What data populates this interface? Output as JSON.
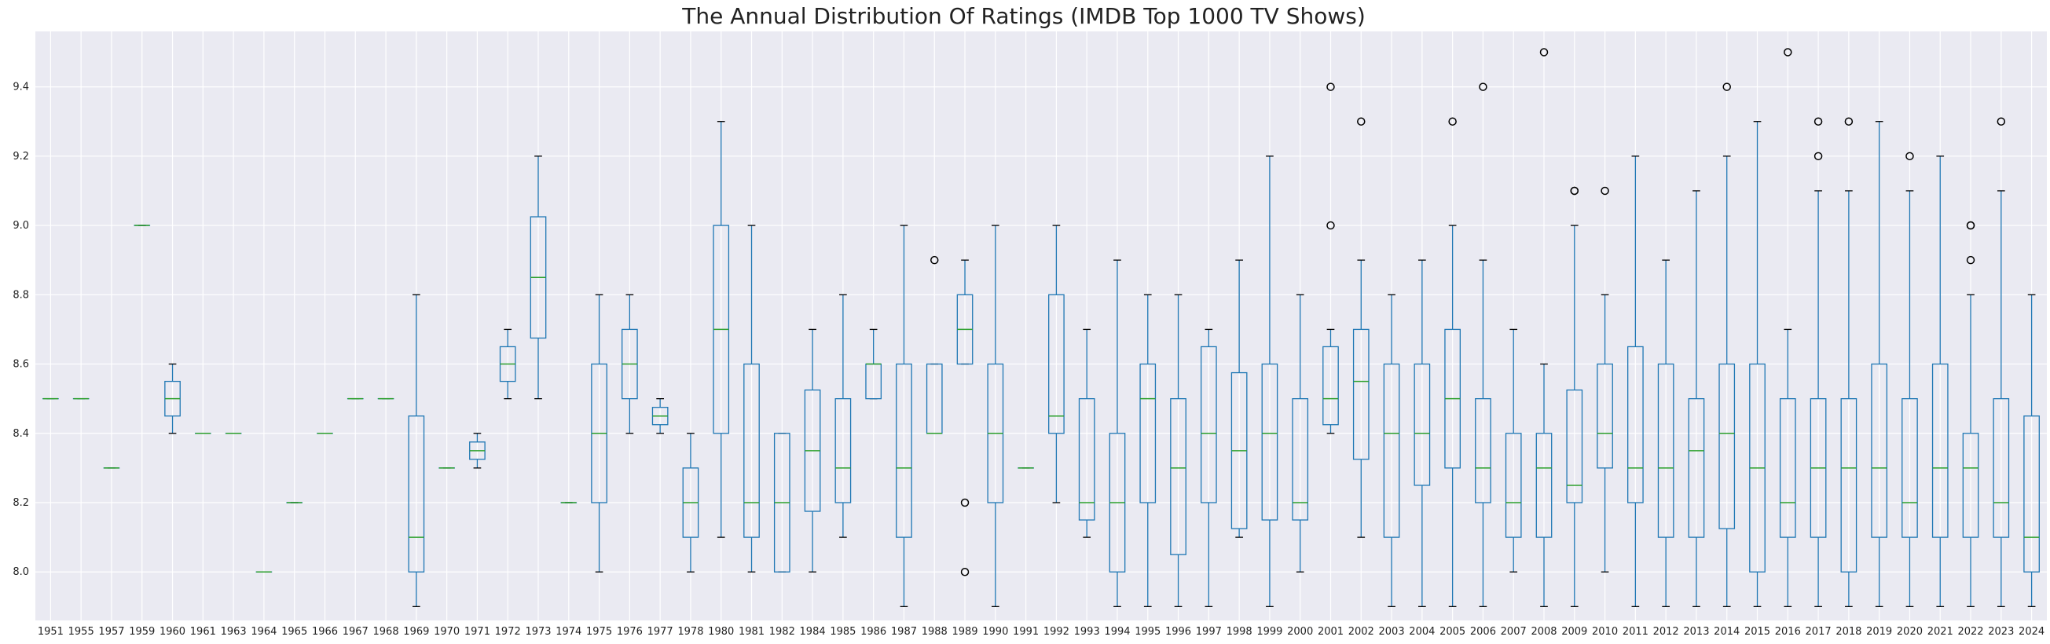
{
  "chart_data": {
    "type": "box",
    "title": "The Annual Distribution Of Ratings (IMDB Top 1000 TV Shows)",
    "xlabel": "",
    "ylabel": "",
    "ylim": [
      7.86,
      9.56
    ],
    "yticks": [
      8.0,
      8.2,
      8.4,
      8.6,
      8.8,
      9.0,
      9.2,
      9.4
    ],
    "ytick_labels": [
      "8.0",
      "8.2",
      "8.4",
      "8.6",
      "8.8",
      "9.0",
      "9.2",
      "9.4"
    ],
    "grid": true,
    "colors": {
      "background": "#eaeaf2",
      "grid": "#ffffff",
      "box": "#1f77b4",
      "median": "#2ca02c",
      "outlier": "#000000"
    },
    "boxes": [
      {
        "category": "1951",
        "whislo": 8.5,
        "q1": 8.5,
        "med": 8.5,
        "q3": 8.5,
        "whishi": 8.5,
        "fliers": []
      },
      {
        "category": "1955",
        "whislo": 8.5,
        "q1": 8.5,
        "med": 8.5,
        "q3": 8.5,
        "whishi": 8.5,
        "fliers": []
      },
      {
        "category": "1957",
        "whislo": 8.3,
        "q1": 8.3,
        "med": 8.3,
        "q3": 8.3,
        "whishi": 8.3,
        "fliers": []
      },
      {
        "category": "1959",
        "whislo": 9.0,
        "q1": 9.0,
        "med": 9.0,
        "q3": 9.0,
        "whishi": 9.0,
        "fliers": []
      },
      {
        "category": "1960",
        "whislo": 8.4,
        "q1": 8.45,
        "med": 8.5,
        "q3": 8.55,
        "whishi": 8.6,
        "fliers": []
      },
      {
        "category": "1961",
        "whislo": 8.4,
        "q1": 8.4,
        "med": 8.4,
        "q3": 8.4,
        "whishi": 8.4,
        "fliers": []
      },
      {
        "category": "1963",
        "whislo": 8.4,
        "q1": 8.4,
        "med": 8.4,
        "q3": 8.4,
        "whishi": 8.4,
        "fliers": []
      },
      {
        "category": "1964",
        "whislo": 8.0,
        "q1": 8.0,
        "med": 8.0,
        "q3": 8.0,
        "whishi": 8.0,
        "fliers": []
      },
      {
        "category": "1965",
        "whislo": 8.2,
        "q1": 8.2,
        "med": 8.2,
        "q3": 8.2,
        "whishi": 8.2,
        "fliers": []
      },
      {
        "category": "1966",
        "whislo": 8.4,
        "q1": 8.4,
        "med": 8.4,
        "q3": 8.4,
        "whishi": 8.4,
        "fliers": []
      },
      {
        "category": "1967",
        "whislo": 8.5,
        "q1": 8.5,
        "med": 8.5,
        "q3": 8.5,
        "whishi": 8.5,
        "fliers": []
      },
      {
        "category": "1968",
        "whislo": 8.5,
        "q1": 8.5,
        "med": 8.5,
        "q3": 8.5,
        "whishi": 8.5,
        "fliers": []
      },
      {
        "category": "1969",
        "whislo": 7.9,
        "q1": 8.0,
        "med": 8.1,
        "q3": 8.45,
        "whishi": 8.8,
        "fliers": []
      },
      {
        "category": "1970",
        "whislo": 8.3,
        "q1": 8.3,
        "med": 8.3,
        "q3": 8.3,
        "whishi": 8.3,
        "fliers": []
      },
      {
        "category": "1971",
        "whislo": 8.3,
        "q1": 8.325,
        "med": 8.35,
        "q3": 8.375,
        "whishi": 8.4,
        "fliers": []
      },
      {
        "category": "1972",
        "whislo": 8.5,
        "q1": 8.55,
        "med": 8.6,
        "q3": 8.65,
        "whishi": 8.7,
        "fliers": []
      },
      {
        "category": "1973",
        "whislo": 8.5,
        "q1": 8.675,
        "med": 8.85,
        "q3": 9.025,
        "whishi": 9.2,
        "fliers": []
      },
      {
        "category": "1974",
        "whislo": 8.2,
        "q1": 8.2,
        "med": 8.2,
        "q3": 8.2,
        "whishi": 8.2,
        "fliers": []
      },
      {
        "category": "1975",
        "whislo": 8.0,
        "q1": 8.2,
        "med": 8.4,
        "q3": 8.6,
        "whishi": 8.8,
        "fliers": []
      },
      {
        "category": "1976",
        "whislo": 8.4,
        "q1": 8.5,
        "med": 8.6,
        "q3": 8.7,
        "whishi": 8.8,
        "fliers": []
      },
      {
        "category": "1977",
        "whislo": 8.4,
        "q1": 8.425,
        "med": 8.45,
        "q3": 8.475,
        "whishi": 8.5,
        "fliers": []
      },
      {
        "category": "1978",
        "whislo": 8.0,
        "q1": 8.1,
        "med": 8.2,
        "q3": 8.3,
        "whishi": 8.4,
        "fliers": []
      },
      {
        "category": "1980",
        "whislo": 8.1,
        "q1": 8.4,
        "med": 8.7,
        "q3": 9.0,
        "whishi": 9.3,
        "fliers": []
      },
      {
        "category": "1981",
        "whislo": 8.0,
        "q1": 8.1,
        "med": 8.2,
        "q3": 8.6,
        "whishi": 9.0,
        "fliers": []
      },
      {
        "category": "1982",
        "whislo": 8.0,
        "q1": 8.0,
        "med": 8.2,
        "q3": 8.4,
        "whishi": 8.4,
        "fliers": []
      },
      {
        "category": "1984",
        "whislo": 8.0,
        "q1": 8.175,
        "med": 8.35,
        "q3": 8.525,
        "whishi": 8.7,
        "fliers": []
      },
      {
        "category": "1985",
        "whislo": 8.1,
        "q1": 8.2,
        "med": 8.3,
        "q3": 8.5,
        "whishi": 8.8,
        "fliers": []
      },
      {
        "category": "1986",
        "whislo": 8.5,
        "q1": 8.5,
        "med": 8.6,
        "q3": 8.6,
        "whishi": 8.7,
        "fliers": []
      },
      {
        "category": "1987",
        "whislo": 7.9,
        "q1": 8.1,
        "med": 8.3,
        "q3": 8.6,
        "whishi": 9.0,
        "fliers": []
      },
      {
        "category": "1988",
        "whislo": 8.4,
        "q1": 8.4,
        "med": 8.4,
        "q3": 8.6,
        "whishi": 8.6,
        "fliers": [
          8.9
        ]
      },
      {
        "category": "1989",
        "whislo": 8.6,
        "q1": 8.6,
        "med": 8.7,
        "q3": 8.8,
        "whishi": 8.9,
        "fliers": [
          8.2,
          8.0
        ]
      },
      {
        "category": "1990",
        "whislo": 7.9,
        "q1": 8.2,
        "med": 8.4,
        "q3": 8.6,
        "whishi": 9.0,
        "fliers": []
      },
      {
        "category": "1991",
        "whislo": 8.3,
        "q1": 8.3,
        "med": 8.3,
        "q3": 8.3,
        "whishi": 8.3,
        "fliers": []
      },
      {
        "category": "1992",
        "whislo": 8.2,
        "q1": 8.4,
        "med": 8.45,
        "q3": 8.8,
        "whishi": 9.0,
        "fliers": []
      },
      {
        "category": "1993",
        "whislo": 8.1,
        "q1": 8.15,
        "med": 8.2,
        "q3": 8.5,
        "whishi": 8.7,
        "fliers": []
      },
      {
        "category": "1994",
        "whislo": 7.9,
        "q1": 8.0,
        "med": 8.2,
        "q3": 8.4,
        "whishi": 8.9,
        "fliers": []
      },
      {
        "category": "1995",
        "whislo": 7.9,
        "q1": 8.2,
        "med": 8.5,
        "q3": 8.6,
        "whishi": 8.8,
        "fliers": []
      },
      {
        "category": "1996",
        "whislo": 7.9,
        "q1": 8.05,
        "med": 8.3,
        "q3": 8.5,
        "whishi": 8.8,
        "fliers": []
      },
      {
        "category": "1997",
        "whislo": 7.9,
        "q1": 8.2,
        "med": 8.4,
        "q3": 8.65,
        "whishi": 8.7,
        "fliers": []
      },
      {
        "category": "1998",
        "whislo": 8.1,
        "q1": 8.125,
        "med": 8.35,
        "q3": 8.575,
        "whishi": 8.9,
        "fliers": []
      },
      {
        "category": "1999",
        "whislo": 7.9,
        "q1": 8.15,
        "med": 8.4,
        "q3": 8.6,
        "whishi": 9.2,
        "fliers": []
      },
      {
        "category": "2000",
        "whislo": 8.0,
        "q1": 8.15,
        "med": 8.2,
        "q3": 8.5,
        "whishi": 8.8,
        "fliers": []
      },
      {
        "category": "2001",
        "whislo": 8.4,
        "q1": 8.425,
        "med": 8.5,
        "q3": 8.65,
        "whishi": 8.7,
        "fliers": [
          9.4,
          9.0
        ]
      },
      {
        "category": "2002",
        "whislo": 8.1,
        "q1": 8.325,
        "med": 8.55,
        "q3": 8.7,
        "whishi": 8.9,
        "fliers": [
          9.3
        ]
      },
      {
        "category": "2003",
        "whislo": 7.9,
        "q1": 8.1,
        "med": 8.4,
        "q3": 8.6,
        "whishi": 8.8,
        "fliers": []
      },
      {
        "category": "2004",
        "whislo": 7.9,
        "q1": 8.25,
        "med": 8.4,
        "q3": 8.6,
        "whishi": 8.9,
        "fliers": []
      },
      {
        "category": "2005",
        "whislo": 7.9,
        "q1": 8.3,
        "med": 8.5,
        "q3": 8.7,
        "whishi": 9.0,
        "fliers": [
          9.3
        ]
      },
      {
        "category": "2006",
        "whislo": 7.9,
        "q1": 8.2,
        "med": 8.3,
        "q3": 8.5,
        "whishi": 8.9,
        "fliers": [
          9.4
        ]
      },
      {
        "category": "2007",
        "whislo": 8.0,
        "q1": 8.1,
        "med": 8.2,
        "q3": 8.4,
        "whishi": 8.7,
        "fliers": []
      },
      {
        "category": "2008",
        "whislo": 7.9,
        "q1": 8.1,
        "med": 8.3,
        "q3": 8.4,
        "whishi": 8.6,
        "fliers": [
          9.5
        ]
      },
      {
        "category": "2009",
        "whislo": 7.9,
        "q1": 8.2,
        "med": 8.25,
        "q3": 8.525,
        "whishi": 9.0,
        "fliers": [
          9.1,
          9.1
        ]
      },
      {
        "category": "2010",
        "whislo": 8.0,
        "q1": 8.3,
        "med": 8.4,
        "q3": 8.6,
        "whishi": 8.8,
        "fliers": [
          9.1
        ]
      },
      {
        "category": "2011",
        "whislo": 7.9,
        "q1": 8.2,
        "med": 8.3,
        "q3": 8.65,
        "whishi": 9.2,
        "fliers": []
      },
      {
        "category": "2012",
        "whislo": 7.9,
        "q1": 8.1,
        "med": 8.3,
        "q3": 8.6,
        "whishi": 8.9,
        "fliers": []
      },
      {
        "category": "2013",
        "whislo": 7.9,
        "q1": 8.1,
        "med": 8.35,
        "q3": 8.5,
        "whishi": 9.1,
        "fliers": []
      },
      {
        "category": "2014",
        "whislo": 7.9,
        "q1": 8.125,
        "med": 8.4,
        "q3": 8.6,
        "whishi": 9.2,
        "fliers": [
          9.4
        ]
      },
      {
        "category": "2015",
        "whislo": 7.9,
        "q1": 8.0,
        "med": 8.3,
        "q3": 8.6,
        "whishi": 9.3,
        "fliers": []
      },
      {
        "category": "2016",
        "whislo": 7.9,
        "q1": 8.1,
        "med": 8.2,
        "q3": 8.5,
        "whishi": 8.7,
        "fliers": [
          9.5
        ]
      },
      {
        "category": "2017",
        "whislo": 7.9,
        "q1": 8.1,
        "med": 8.3,
        "q3": 8.5,
        "whishi": 9.1,
        "fliers": [
          9.3,
          9.2
        ]
      },
      {
        "category": "2018",
        "whislo": 7.9,
        "q1": 8.0,
        "med": 8.3,
        "q3": 8.5,
        "whishi": 9.1,
        "fliers": [
          9.3
        ]
      },
      {
        "category": "2019",
        "whislo": 7.9,
        "q1": 8.1,
        "med": 8.3,
        "q3": 8.6,
        "whishi": 9.3,
        "fliers": []
      },
      {
        "category": "2020",
        "whislo": 7.9,
        "q1": 8.1,
        "med": 8.2,
        "q3": 8.5,
        "whishi": 9.1,
        "fliers": [
          9.2
        ]
      },
      {
        "category": "2021",
        "whislo": 7.9,
        "q1": 8.1,
        "med": 8.3,
        "q3": 8.6,
        "whishi": 9.2,
        "fliers": []
      },
      {
        "category": "2022",
        "whislo": 7.9,
        "q1": 8.1,
        "med": 8.3,
        "q3": 8.4,
        "whishi": 8.8,
        "fliers": [
          9.0,
          9.0,
          8.9
        ]
      },
      {
        "category": "2023",
        "whislo": 7.9,
        "q1": 8.1,
        "med": 8.2,
        "q3": 8.5,
        "whishi": 9.1,
        "fliers": [
          9.3
        ]
      },
      {
        "category": "2024",
        "whislo": 7.9,
        "q1": 8.0,
        "med": 8.1,
        "q3": 8.45,
        "whishi": 8.8,
        "fliers": []
      }
    ]
  }
}
